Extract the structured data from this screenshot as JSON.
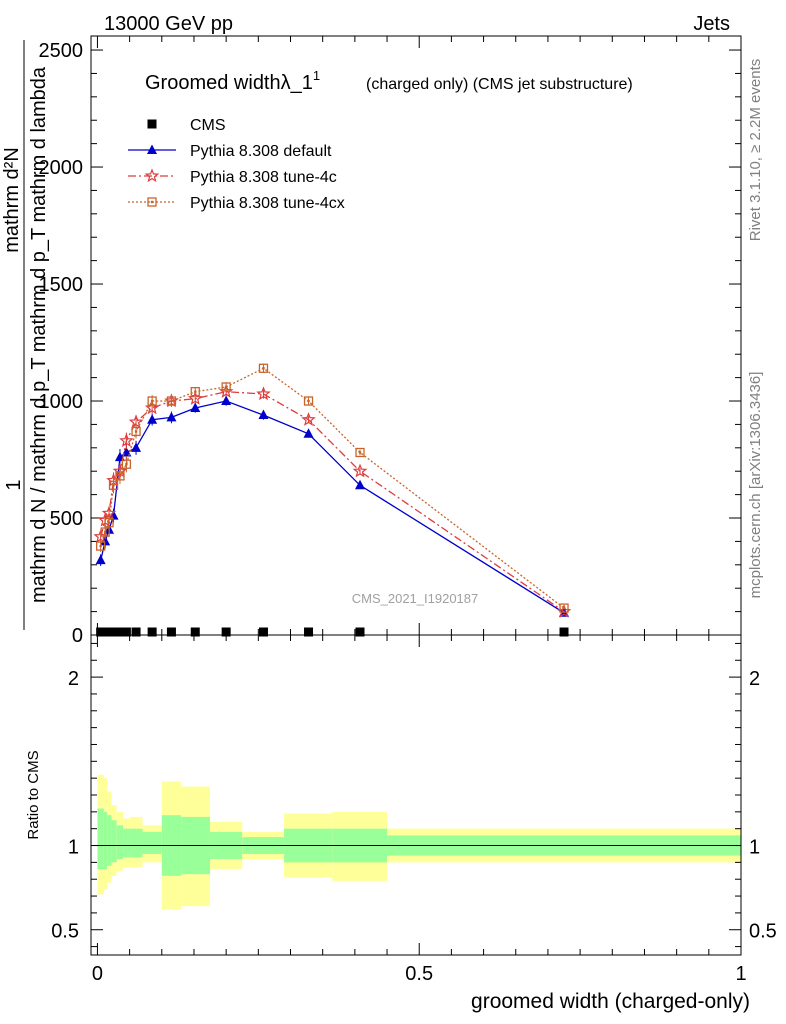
{
  "header": {
    "left": "13000 GeV pp",
    "right": "Jets"
  },
  "side_labels": {
    "rivet": "Rivet 3.1.10, ≥ 2.2M events",
    "mcplots": "mcplots.cern.ch [arXiv:1306.3436]"
  },
  "watermark": "CMS_2021_I1920187",
  "chart_data": [
    {
      "type": "line",
      "title": "Groomed widthλ_1",
      "title_sup": "1",
      "subtitle": "(charged only) (CMS jet substructure)",
      "ylabel_num": "1",
      "ylabel_den": "mathrm d N / mathrm d p_T mathrm d p_T mathrm d lambda",
      "ylabel_top": "mathrm d²N",
      "ylim": [
        0,
        2560
      ],
      "xlim": [
        -0.01,
        1.0
      ],
      "yticks": [
        0,
        500,
        1000,
        1500,
        2000,
        2500
      ],
      "ytick_labels": [
        "0",
        "500",
        "1000",
        "1500",
        "2000",
        "2500"
      ],
      "legend_position": "top-left",
      "series": [
        {
          "name": "CMS",
          "color": "#000000",
          "marker": "square",
          "x": [
            0.005,
            0.012,
            0.018,
            0.025,
            0.035,
            0.045,
            0.06,
            0.085,
            0.115,
            0.152,
            0.2,
            0.258,
            0.328,
            0.408,
            0.725
          ],
          "values": [
            0,
            0,
            0,
            0,
            0,
            0,
            0,
            0,
            0,
            0,
            0,
            0,
            0,
            0,
            0
          ]
        },
        {
          "name": "Pythia 8.308 default",
          "color": "#0000cc",
          "marker": "triangle",
          "x": [
            0.005,
            0.012,
            0.018,
            0.025,
            0.035,
            0.045,
            0.06,
            0.085,
            0.115,
            0.152,
            0.2,
            0.258,
            0.328,
            0.408,
            0.725
          ],
          "values": [
            320,
            400,
            450,
            510,
            760,
            780,
            800,
            920,
            930,
            970,
            1000,
            940,
            860,
            640,
            95
          ],
          "errors": [
            25,
            30,
            30,
            30,
            35,
            35,
            30,
            25,
            25,
            20,
            20,
            20,
            15,
            12,
            5
          ]
        },
        {
          "name": "Pythia 8.308 tune-4c",
          "color": "#e03c3c",
          "marker": "star",
          "x": [
            0.005,
            0.012,
            0.018,
            0.025,
            0.035,
            0.045,
            0.06,
            0.085,
            0.115,
            0.152,
            0.2,
            0.258,
            0.328,
            0.408,
            0.725
          ],
          "values": [
            420,
            490,
            520,
            660,
            700,
            830,
            910,
            970,
            1000,
            1010,
            1040,
            1030,
            920,
            700,
            100
          ],
          "errors": [
            25,
            30,
            30,
            35,
            35,
            35,
            30,
            25,
            25,
            20,
            20,
            20,
            15,
            12,
            5
          ]
        },
        {
          "name": "Pythia 8.308 tune-4cx",
          "color": "#c8642a",
          "marker": "open-square",
          "x": [
            0.005,
            0.012,
            0.018,
            0.025,
            0.035,
            0.045,
            0.06,
            0.085,
            0.115,
            0.152,
            0.2,
            0.258,
            0.328,
            0.408,
            0.725
          ],
          "values": [
            380,
            440,
            480,
            640,
            680,
            730,
            870,
            1000,
            1000,
            1040,
            1060,
            1140,
            1000,
            780,
            115
          ],
          "errors": [
            25,
            30,
            30,
            35,
            35,
            35,
            30,
            25,
            25,
            20,
            20,
            20,
            15,
            12,
            5
          ]
        }
      ]
    },
    {
      "type": "area",
      "ylabel": "Ratio to CMS",
      "xlabel": "groomed width (charged-only)",
      "xlim": [
        -0.01,
        1.0
      ],
      "ylim": [
        0.35,
        2.25
      ],
      "xticks": [
        0,
        0.5,
        1
      ],
      "xtick_labels": [
        "0",
        "0.5",
        "1"
      ],
      "yticks": [
        0.5,
        1,
        2
      ],
      "ytick_labels": [
        "0.5",
        "1",
        "2"
      ],
      "reference_line": 1,
      "bins": [
        {
          "lo": 0.0,
          "hi": 0.01,
          "inner": [
            0.86,
            1.22
          ],
          "outer": [
            0.71,
            1.42
          ]
        },
        {
          "lo": 0.01,
          "hi": 0.015,
          "inner": [
            0.86,
            1.2
          ],
          "outer": [
            0.74,
            1.4
          ]
        },
        {
          "lo": 0.015,
          "hi": 0.022,
          "inner": [
            0.88,
            1.18
          ],
          "outer": [
            0.78,
            1.32
          ]
        },
        {
          "lo": 0.022,
          "hi": 0.03,
          "inner": [
            0.9,
            1.15
          ],
          "outer": [
            0.82,
            1.24
          ]
        },
        {
          "lo": 0.03,
          "hi": 0.04,
          "inner": [
            0.92,
            1.12
          ],
          "outer": [
            0.85,
            1.2
          ]
        },
        {
          "lo": 0.04,
          "hi": 0.05,
          "inner": [
            0.93,
            1.1
          ],
          "outer": [
            0.87,
            1.16
          ]
        },
        {
          "lo": 0.05,
          "hi": 0.07,
          "inner": [
            0.93,
            1.1
          ],
          "outer": [
            0.87,
            1.17
          ]
        },
        {
          "lo": 0.07,
          "hi": 0.1,
          "inner": [
            0.95,
            1.08
          ],
          "outer": [
            0.9,
            1.12
          ]
        },
        {
          "lo": 0.1,
          "hi": 0.13,
          "inner": [
            0.82,
            1.18
          ],
          "outer": [
            0.62,
            1.38
          ]
        },
        {
          "lo": 0.13,
          "hi": 0.175,
          "inner": [
            0.83,
            1.17
          ],
          "outer": [
            0.64,
            1.35
          ]
        },
        {
          "lo": 0.175,
          "hi": 0.225,
          "inner": [
            0.92,
            1.08
          ],
          "outer": [
            0.86,
            1.14
          ]
        },
        {
          "lo": 0.225,
          "hi": 0.29,
          "inner": [
            0.95,
            1.05
          ],
          "outer": [
            0.92,
            1.08
          ]
        },
        {
          "lo": 0.29,
          "hi": 0.365,
          "inner": [
            0.9,
            1.1
          ],
          "outer": [
            0.81,
            1.19
          ]
        },
        {
          "lo": 0.365,
          "hi": 0.45,
          "inner": [
            0.9,
            1.1
          ],
          "outer": [
            0.79,
            1.2
          ]
        },
        {
          "lo": 0.45,
          "hi": 1.0,
          "inner": [
            0.94,
            1.06
          ],
          "outer": [
            0.9,
            1.1
          ]
        }
      ],
      "colors": {
        "inner": "#99ff99",
        "outer": "#ffff99"
      }
    }
  ]
}
